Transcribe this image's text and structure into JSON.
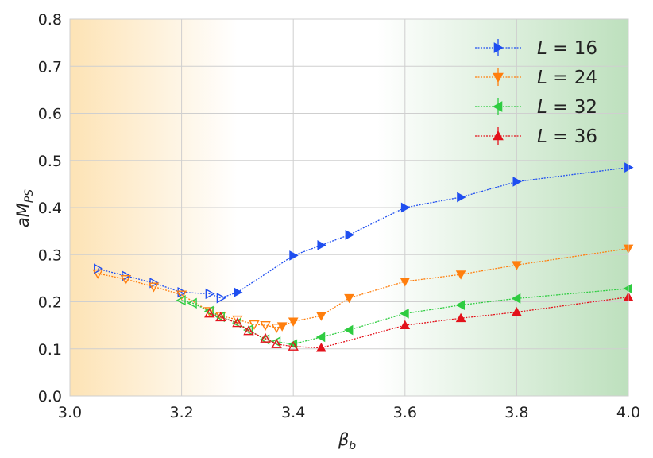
{
  "chart_data": {
    "type": "line",
    "xlabel": "β_b",
    "ylabel": "aM_PS",
    "xlim": [
      3.0,
      4.0
    ],
    "ylim": [
      0.0,
      0.8
    ],
    "xticks": [
      "3.0",
      "3.2",
      "3.4",
      "3.6",
      "3.8",
      "4.0"
    ],
    "yticks": [
      "0.0",
      "0.1",
      "0.2",
      "0.3",
      "0.4",
      "0.5",
      "0.6",
      "0.7",
      "0.8"
    ],
    "grid": true,
    "legend_position": "top-right",
    "background_bands": [
      {
        "region": "left",
        "x_range": [
          3.0,
          3.3
        ],
        "color": "#fde3b5"
      },
      {
        "region": "right",
        "x_range": [
          3.55,
          4.0
        ],
        "color": "#bde0bd"
      }
    ],
    "series": [
      {
        "name": "L = 16",
        "label_var": "L",
        "label_eq": "=",
        "label_num": "16",
        "color": "#1f4ef0",
        "marker": "triangle-right",
        "x": [
          3.05,
          3.1,
          3.15,
          3.2,
          3.25,
          3.27,
          3.3,
          3.4,
          3.45,
          3.5,
          3.6,
          3.7,
          3.8,
          4.0
        ],
        "y": [
          0.27,
          0.255,
          0.24,
          0.22,
          0.217,
          0.208,
          0.22,
          0.298,
          0.32,
          0.342,
          0.4,
          0.422,
          0.455,
          0.485
        ],
        "filled": [
          false,
          false,
          false,
          false,
          false,
          false,
          true,
          true,
          true,
          true,
          true,
          true,
          true,
          true
        ]
      },
      {
        "name": "L = 24",
        "label_var": "L",
        "label_eq": "=",
        "label_num": "24",
        "color": "#ff7f0e",
        "marker": "triangle-down",
        "x": [
          3.05,
          3.1,
          3.15,
          3.2,
          3.25,
          3.27,
          3.3,
          3.33,
          3.35,
          3.37,
          3.38,
          3.4,
          3.45,
          3.5,
          3.6,
          3.7,
          3.8,
          4.0
        ],
        "y": [
          0.26,
          0.248,
          0.232,
          0.215,
          0.18,
          0.17,
          0.162,
          0.152,
          0.15,
          0.145,
          0.148,
          0.158,
          0.17,
          0.208,
          0.243,
          0.258,
          0.278,
          0.313
        ],
        "filled": [
          false,
          false,
          false,
          false,
          false,
          false,
          false,
          false,
          false,
          false,
          true,
          true,
          true,
          true,
          true,
          true,
          true,
          true
        ]
      },
      {
        "name": "L = 32",
        "label_var": "L",
        "label_eq": "=",
        "label_num": "32",
        "color": "#2ecc40",
        "marker": "triangle-left",
        "x": [
          3.2,
          3.22,
          3.25,
          3.27,
          3.3,
          3.32,
          3.35,
          3.37,
          3.4,
          3.45,
          3.5,
          3.6,
          3.7,
          3.8,
          4.0
        ],
        "y": [
          0.203,
          0.197,
          0.18,
          0.168,
          0.155,
          0.14,
          0.12,
          0.115,
          0.11,
          0.125,
          0.14,
          0.175,
          0.193,
          0.207,
          0.228
        ],
        "filled": [
          false,
          false,
          false,
          false,
          false,
          false,
          false,
          false,
          true,
          true,
          true,
          true,
          true,
          true,
          true
        ]
      },
      {
        "name": "L = 36",
        "label_var": "L",
        "label_eq": "=",
        "label_num": "36",
        "color": "#e3121b",
        "marker": "triangle-up",
        "x": [
          3.25,
          3.27,
          3.3,
          3.32,
          3.35,
          3.37,
          3.4,
          3.45,
          3.6,
          3.7,
          3.8,
          4.0
        ],
        "y": [
          0.175,
          0.167,
          0.155,
          0.138,
          0.122,
          0.11,
          0.105,
          0.102,
          0.15,
          0.165,
          0.178,
          0.21
        ],
        "filled": [
          false,
          false,
          false,
          false,
          false,
          false,
          false,
          true,
          true,
          true,
          true,
          true
        ]
      }
    ]
  }
}
